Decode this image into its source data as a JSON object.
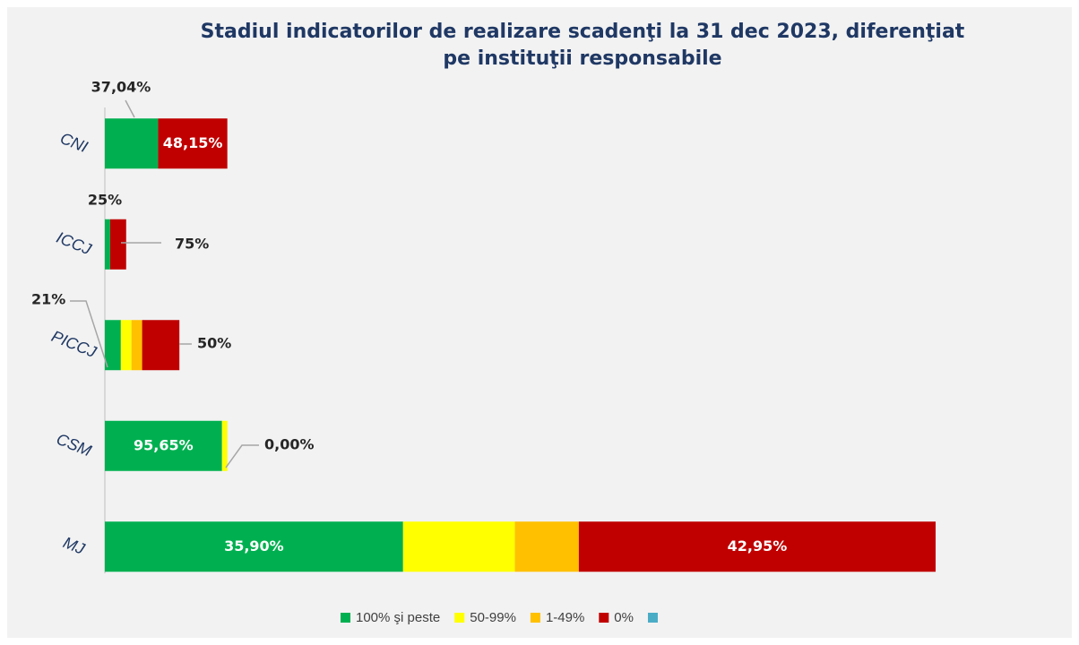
{
  "chart_data": {
    "type": "stacked-bar-horizontal",
    "title": "Stadiul indicatorilor de realizare scadenţi la 31 dec 2023, diferenţiat",
    "subtitle": "pe instituţii responsabile",
    "categories": [
      "CNI",
      "ICCJ",
      "PICCJ",
      "CSM",
      "MJ"
    ],
    "xlim": [
      0,
      156
    ],
    "series": [
      {
        "name": "100% şi peste",
        "color": "#00b050",
        "values": [
          10,
          1,
          3,
          22,
          56
        ],
        "data_labels": [
          "37,04%",
          "25%",
          "21%",
          "95,65%",
          "35,90%"
        ]
      },
      {
        "name": "50-99%",
        "color": "#ffff00",
        "values": [
          0,
          0,
          2,
          1,
          21
        ],
        "data_labels": [
          null,
          null,
          null,
          null,
          null
        ]
      },
      {
        "name": "1-49%",
        "color": "#ffc000",
        "values": [
          0,
          0,
          2,
          0,
          12
        ],
        "data_labels": [
          null,
          null,
          null,
          "0,00%",
          null
        ]
      },
      {
        "name": "0%",
        "color": "#c00000",
        "values": [
          13,
          3,
          7,
          0,
          67
        ],
        "data_labels": [
          "48,15%",
          "75%",
          "50%",
          null,
          "42,95%"
        ]
      },
      {
        "name": null,
        "color": "#4bacc6",
        "values": [
          0,
          0,
          0,
          0,
          0
        ],
        "data_labels": [
          null,
          null,
          null,
          null,
          null
        ]
      }
    ]
  }
}
